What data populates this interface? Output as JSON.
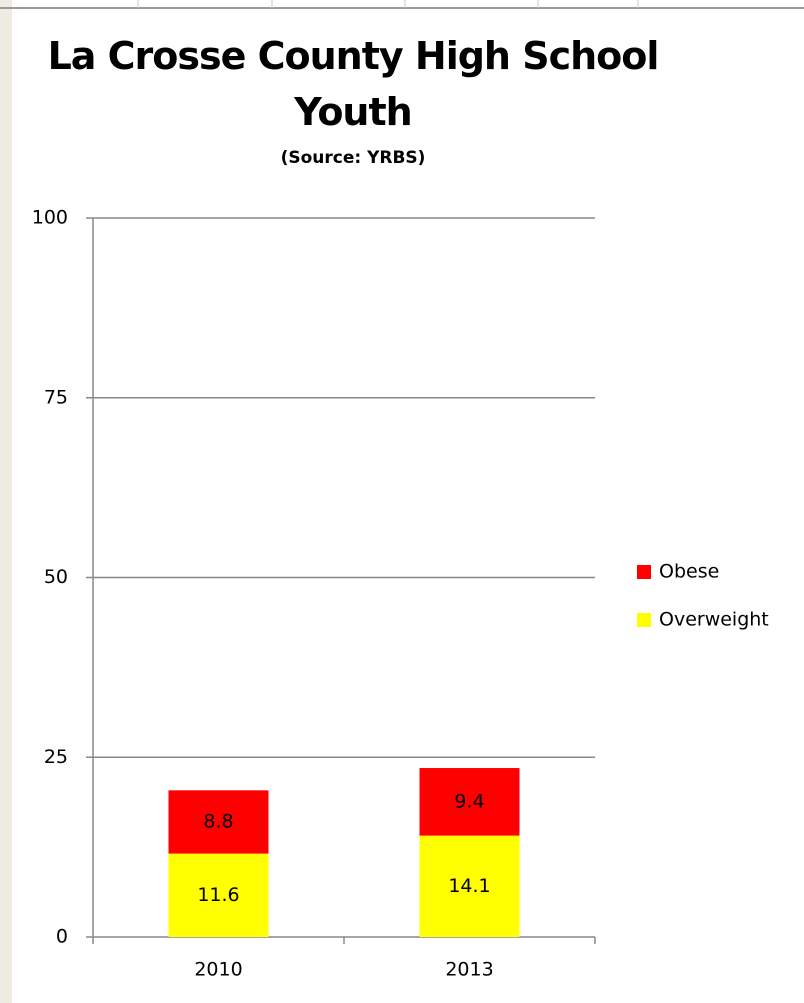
{
  "chart_data": {
    "type": "stacked-bar",
    "title": "La Crosse County High School Youth",
    "subtitle": "(Source: YRBS)",
    "categories": [
      "2010",
      "2013"
    ],
    "series": [
      {
        "name": "Overweight",
        "color": "#ffff00",
        "values": [
          11.6,
          14.1
        ]
      },
      {
        "name": "Obese",
        "color": "#ff0000",
        "values": [
          8.8,
          9.4
        ]
      }
    ],
    "ylim": [
      0,
      100
    ],
    "yticks": [
      0,
      25,
      50,
      75,
      100
    ],
    "grid": true,
    "legend": "right"
  }
}
